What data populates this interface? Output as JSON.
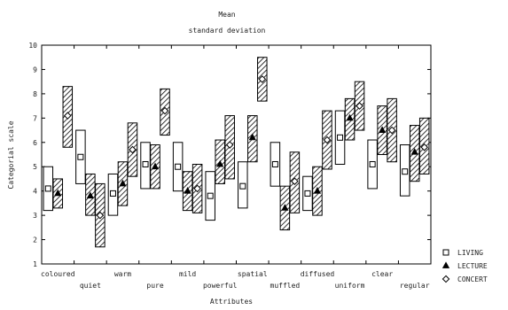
{
  "chart_data": {
    "type": "box",
    "title": "Mean",
    "subtitle": "standard deviation",
    "xlabel": "Attributes",
    "ylabel": "Categorial scale",
    "ylim": [
      1,
      10
    ],
    "yticks": [
      1,
      2,
      3,
      4,
      5,
      6,
      7,
      8,
      9,
      10
    ],
    "categories": [
      "coloured",
      "quiet",
      "warm",
      "pure",
      "mild",
      "powerful",
      "spatial",
      "muffled",
      "diffused",
      "uniform",
      "clear",
      "regular"
    ],
    "legend": {
      "placement": "bottom-right"
    },
    "series": [
      {
        "name": "LIVING",
        "marker": "square",
        "fill": "white",
        "mean": [
          4.1,
          5.4,
          3.9,
          5.1,
          5.0,
          3.8,
          4.2,
          5.1,
          3.9,
          6.2,
          5.1,
          4.8
        ],
        "low": [
          3.2,
          4.3,
          3.0,
          4.1,
          4.0,
          2.8,
          3.3,
          4.2,
          3.2,
          5.1,
          4.1,
          3.8
        ],
        "high": [
          5.0,
          6.5,
          4.7,
          6.0,
          6.0,
          4.8,
          5.2,
          6.0,
          4.6,
          7.3,
          6.1,
          5.9
        ]
      },
      {
        "name": "LECTURE",
        "marker": "triangle",
        "fill": "hatch",
        "mean": [
          3.9,
          3.8,
          4.3,
          5.0,
          4.0,
          5.1,
          6.2,
          3.3,
          4.0,
          7.0,
          6.5,
          5.6
        ],
        "low": [
          3.3,
          3.0,
          3.4,
          4.1,
          3.2,
          4.3,
          5.2,
          2.4,
          3.0,
          6.1,
          5.5,
          4.4
        ],
        "high": [
          4.5,
          4.7,
          5.2,
          5.9,
          4.8,
          6.1,
          7.1,
          4.2,
          5.0,
          7.8,
          7.5,
          6.7
        ]
      },
      {
        "name": "CONCERT",
        "marker": "diamond",
        "fill": "hatch",
        "mean": [
          7.1,
          3.0,
          5.7,
          7.3,
          4.1,
          5.9,
          8.6,
          4.4,
          6.1,
          7.5,
          6.5,
          5.8
        ],
        "low": [
          5.8,
          1.7,
          4.6,
          6.3,
          3.1,
          4.5,
          7.7,
          3.1,
          4.9,
          6.5,
          5.2,
          4.7
        ],
        "high": [
          8.3,
          4.3,
          6.8,
          8.2,
          5.1,
          7.1,
          9.5,
          5.6,
          7.3,
          8.5,
          7.8,
          7.0
        ]
      }
    ]
  }
}
